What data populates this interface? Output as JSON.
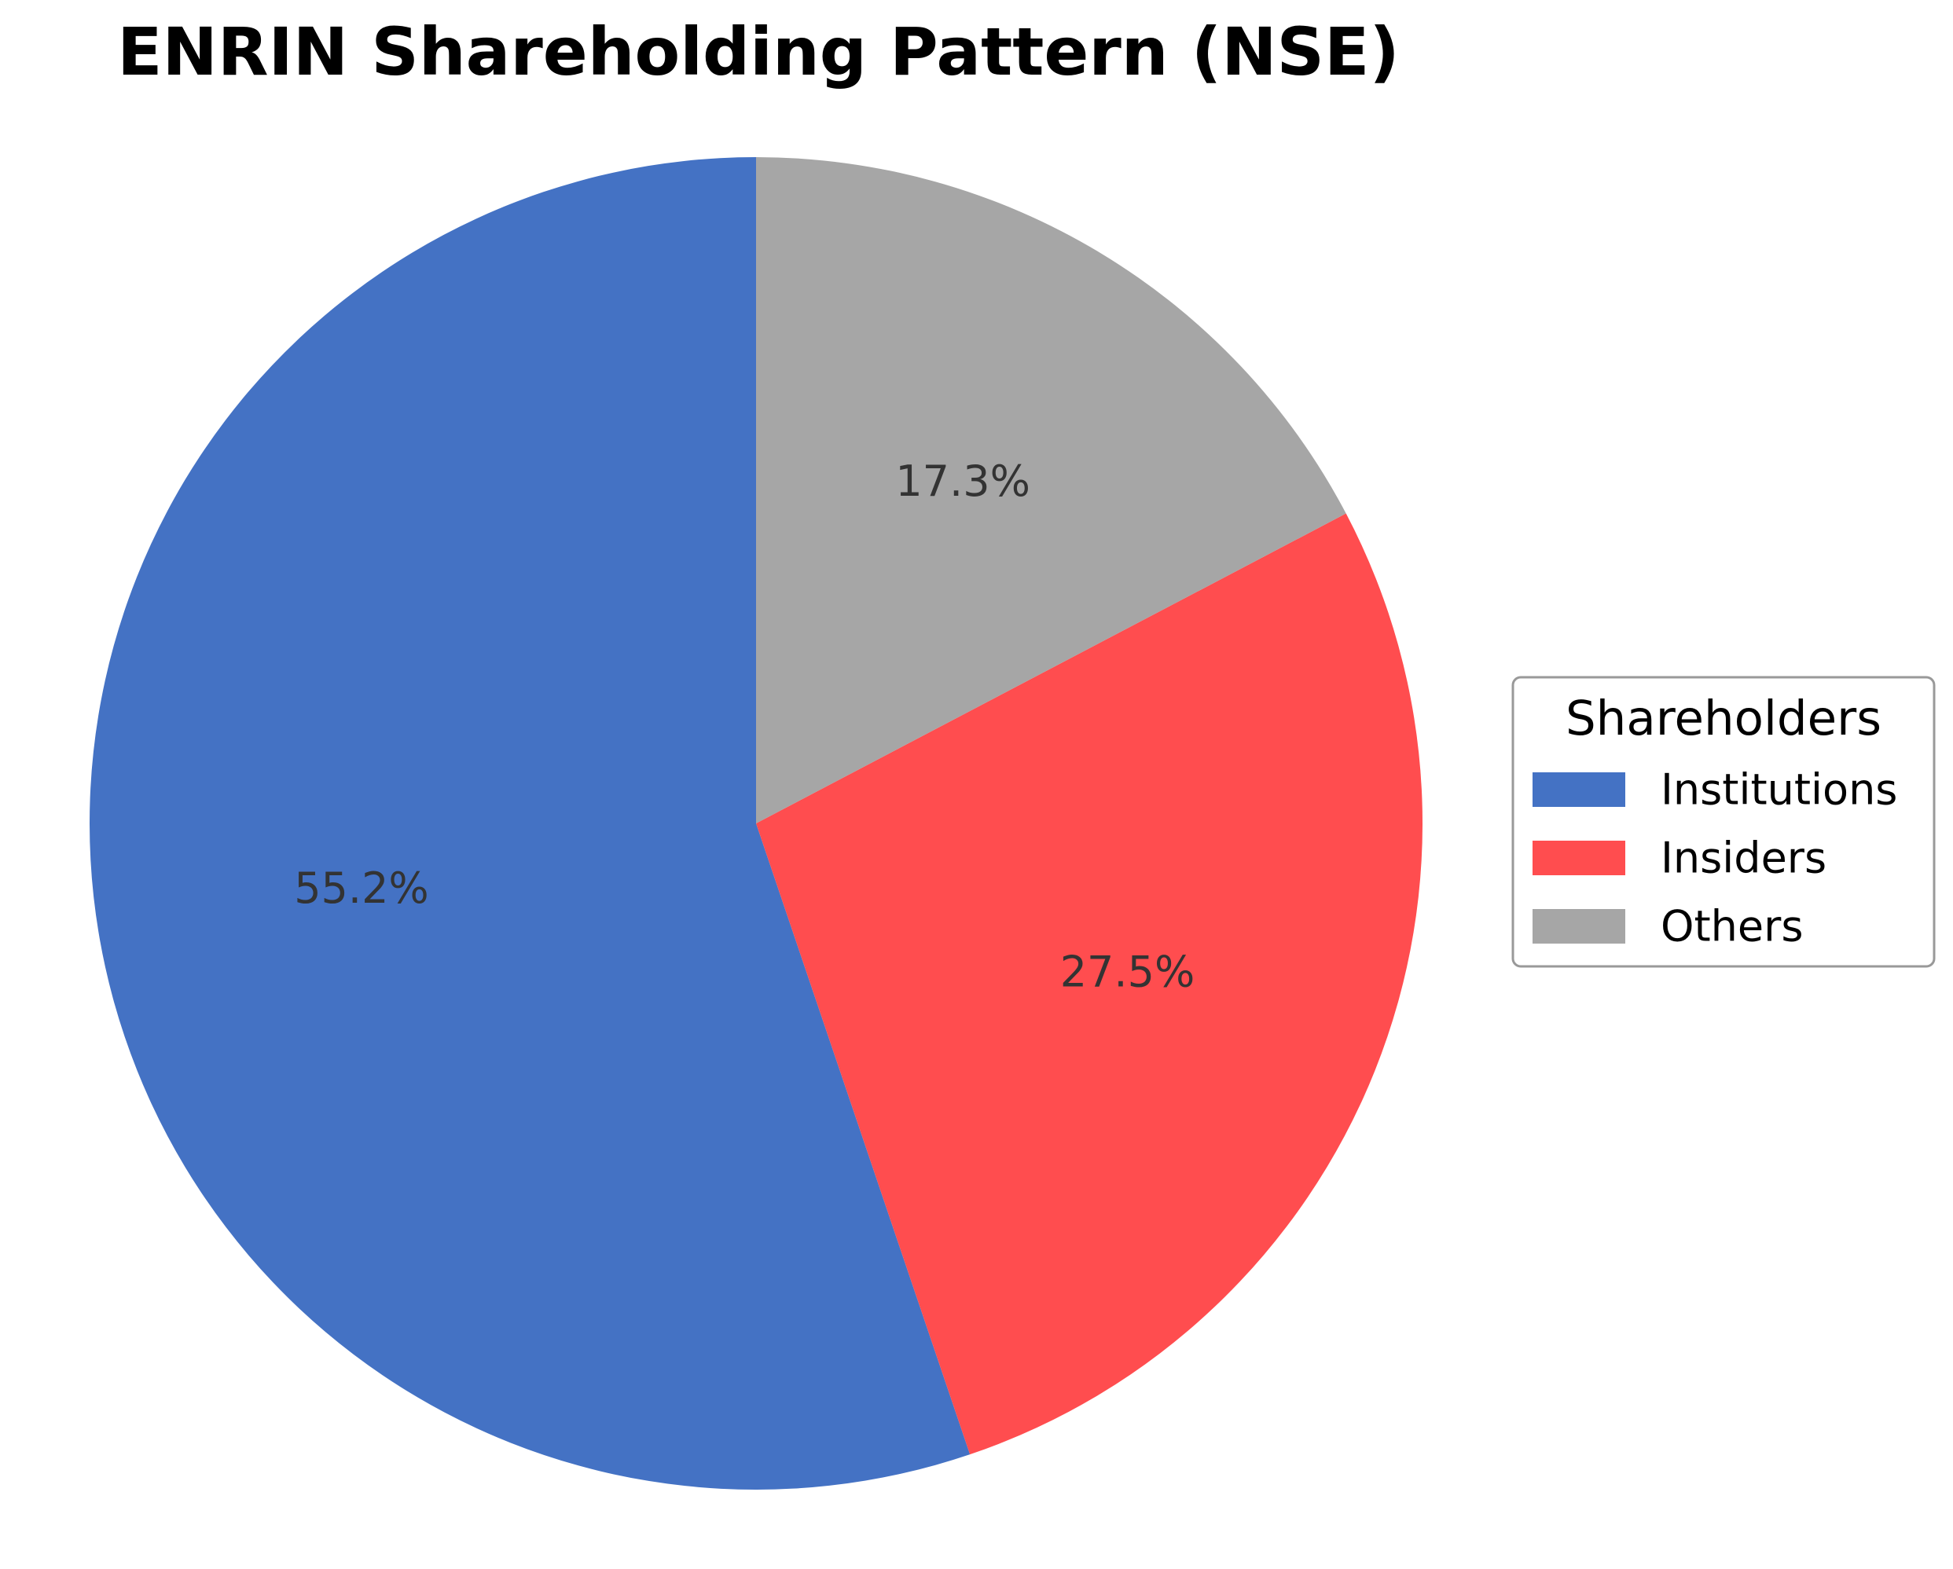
{
  "chart_data": {
    "type": "pie",
    "title": "ENRIN Shareholding Pattern (NSE)",
    "categories": [
      "Institutions",
      "Insiders",
      "Others"
    ],
    "values": [
      55.2,
      27.5,
      17.3
    ],
    "labels": [
      "55.2%",
      "27.5%",
      "17.3%"
    ],
    "colors": [
      "#4472C4",
      "#FF4D4F",
      "#A6A6A6"
    ],
    "start_angle_deg": 90,
    "direction": "counterclockwise",
    "legend": {
      "title": "Shareholders",
      "placement": "right",
      "entries": [
        "Institutions",
        "Insiders",
        "Others"
      ]
    }
  }
}
